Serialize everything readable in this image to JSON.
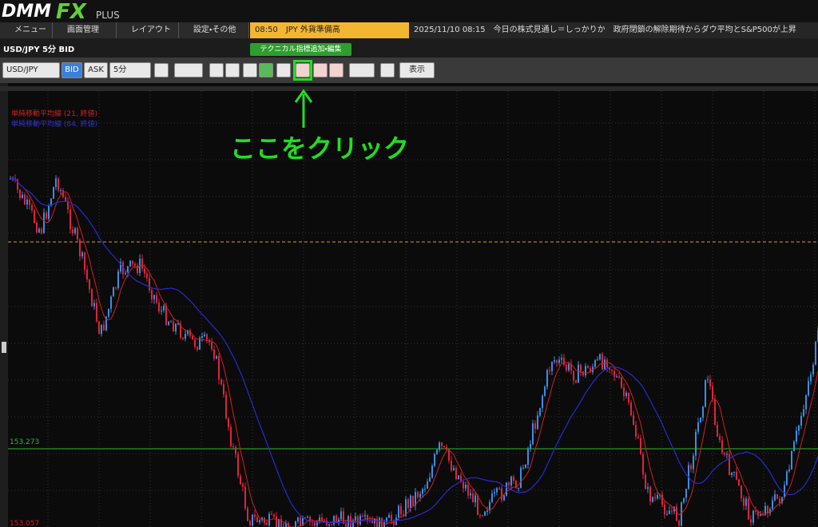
{
  "logo": {
    "brand": "DMM",
    "product": "FX",
    "edition": "PLUS"
  },
  "menu": [
    "メニュー",
    "画面管理",
    "レイアウト",
    "設定・その他"
  ],
  "ticker": {
    "highlight": "08:50　JPY 外貨準備高",
    "news": "2025/11/10 08:15　今日の株式見通し＝しっかりか　政府閉鎖の解除期待からダウ平均とS&P500が上昇"
  },
  "chart_header": "USD/JPY 5分 BID",
  "toolbar": {
    "symbol": "USD/JPY",
    "bid": "BID",
    "ask": "ASK",
    "timeframe": "5分",
    "view": "表示"
  },
  "tooltip": "テクニカル指標追加・編集",
  "indicators": [
    "単純移動平均線 (21, 終値)",
    "単純移動平均線 (84, 終値)"
  ],
  "annotation": "ここをクリック",
  "price_lines": [
    "153.273",
    "153.057"
  ]
}
